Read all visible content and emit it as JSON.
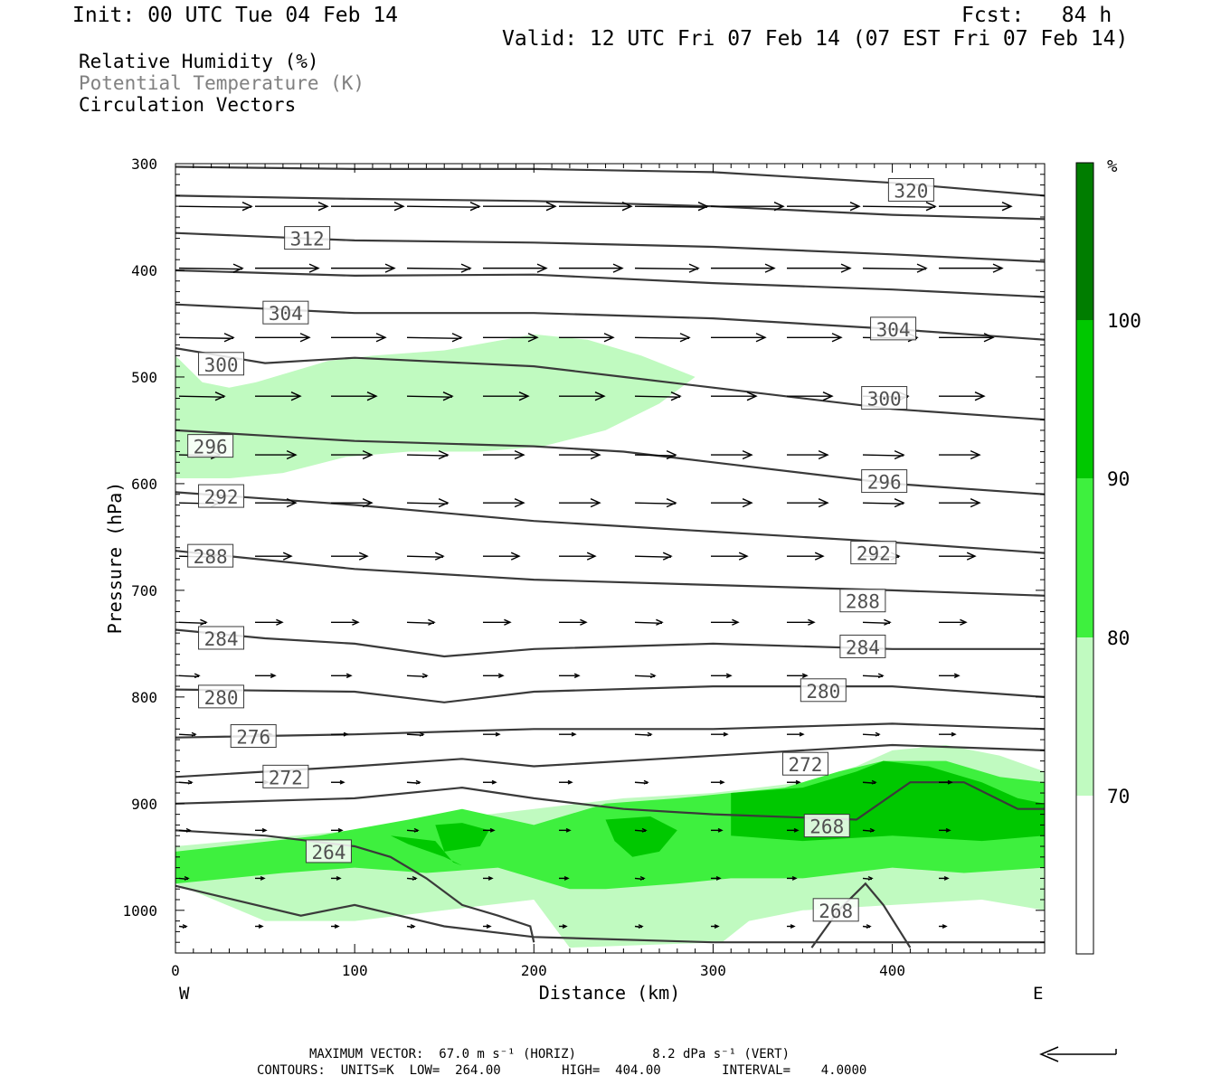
{
  "header": {
    "init": "Init: 00 UTC Tue 04 Feb 14",
    "fcst": "Fcst:   84 h",
    "valid": "Valid: 12 UTC Fri 07 Feb 14 (07 EST Fri 07 Feb 14)",
    "fields": [
      "Relative Humidity (%)",
      "Potential Temperature (K)",
      "Circulation Vectors"
    ]
  },
  "footer": {
    "max_vector": "MAXIMUM VECTOR:  67.0 m s⁻¹ (HORIZ)          8.2 dPa s⁻¹ (VERT)",
    "contours": "CONTOURS:  UNITS=K  LOW=  264.00        HIGH=  404.00        INTERVAL=    4.0000"
  },
  "colors": {
    "rh_70": "#c0fac0",
    "rh_80": "#3ef03e",
    "rh_90": "#00c800",
    "rh_100": "#007d00",
    "contour": "#3a3a3a",
    "text_gray": "#808080"
  },
  "chart_data": {
    "type": "cross-section",
    "xlabel": "Distance (km)",
    "ylabel": "Pressure (hPa)",
    "x_ticks": [
      0,
      100,
      200,
      300,
      400
    ],
    "y_ticks": [
      300,
      400,
      500,
      600,
      700,
      800,
      900,
      1000
    ],
    "xlim": [
      0,
      485
    ],
    "ylim": [
      1040,
      300
    ],
    "y_scale": "linear pressure (decreasing upward)",
    "end_labels": {
      "left": "W",
      "right": "E"
    },
    "colorbar": {
      "unit": "%",
      "levels": [
        70,
        80,
        90,
        100
      ],
      "position": "right"
    },
    "rh_shading": {
      "70": [
        {
          "x": [
            0,
            15,
            30,
            45,
            65,
            85,
            110,
            150,
            200,
            230,
            260,
            290,
            270,
            240,
            205,
            170,
            130,
            95,
            60,
            30,
            0
          ],
          "p": [
            480,
            505,
            510,
            505,
            495,
            485,
            480,
            475,
            460,
            465,
            480,
            500,
            525,
            550,
            565,
            570,
            570,
            575,
            590,
            595,
            595
          ]
        },
        {
          "x": [
            0,
            100,
            150,
            200,
            250,
            300,
            350,
            380,
            400,
            430,
            460,
            485,
            485,
            450,
            400,
            350,
            320,
            305,
            220,
            200,
            150,
            100,
            50,
            0
          ],
          "p": [
            940,
            925,
            915,
            905,
            895,
            890,
            880,
            865,
            850,
            845,
            855,
            870,
            1000,
            990,
            995,
            1000,
            1010,
            1030,
            1035,
            990,
            1000,
            1010,
            1010,
            975
          ]
        }
      ],
      "80": [
        {
          "x": [
            0,
            80,
            130,
            160,
            200,
            240,
            280,
            310,
            340,
            370,
            395,
            430,
            460,
            485,
            485,
            440,
            400,
            350,
            310,
            280,
            240,
            220,
            180,
            140,
            100,
            60,
            0
          ],
          "p": [
            945,
            930,
            915,
            905,
            920,
            900,
            895,
            890,
            885,
            870,
            860,
            860,
            875,
            880,
            960,
            965,
            960,
            970,
            970,
            975,
            980,
            980,
            960,
            965,
            960,
            965,
            975
          ]
        }
      ],
      "90": [
        {
          "x": [
            120,
            145,
            155,
            160,
            150,
            130
          ],
          "p": [
            930,
            935,
            955,
            958,
            950,
            938
          ]
        },
        {
          "x": [
            145,
            160,
            175,
            170,
            150
          ],
          "p": [
            920,
            918,
            925,
            940,
            945
          ]
        },
        {
          "x": [
            240,
            265,
            280,
            270,
            255,
            245
          ],
          "p": [
            915,
            912,
            925,
            945,
            950,
            935
          ]
        },
        {
          "x": [
            310,
            350,
            380,
            395,
            420,
            450,
            470,
            485,
            485,
            450,
            400,
            350,
            310
          ],
          "p": [
            890,
            885,
            870,
            860,
            865,
            880,
            895,
            900,
            930,
            935,
            930,
            935,
            930
          ]
        }
      ]
    },
    "theta_contours": [
      {
        "level": 320,
        "x": [
          0,
          100,
          200,
          300,
          400,
          485
        ],
        "p": [
          303,
          305,
          305,
          308,
          318,
          330
        ]
      },
      {
        "level": 316,
        "x": [
          0,
          100,
          200,
          300,
          400,
          485
        ],
        "p": [
          330,
          333,
          335,
          340,
          348,
          352
        ]
      },
      {
        "level": 312,
        "x": [
          0,
          100,
          200,
          300,
          400,
          485
        ],
        "p": [
          365,
          372,
          374,
          378,
          385,
          392
        ]
      },
      {
        "level": 308,
        "x": [
          0,
          100,
          200,
          300,
          400,
          485
        ],
        "p": [
          400,
          405,
          404,
          412,
          418,
          425
        ]
      },
      {
        "level": 304,
        "x": [
          0,
          100,
          200,
          300,
          400,
          485
        ],
        "p": [
          432,
          440,
          440,
          445,
          455,
          465
        ]
      },
      {
        "level": 300,
        "x": [
          0,
          50,
          100,
          200,
          250,
          300,
          400,
          485
        ],
        "p": [
          473,
          487,
          482,
          490,
          500,
          510,
          530,
          540
        ]
      },
      {
        "level": 296,
        "x": [
          0,
          50,
          100,
          200,
          250,
          300,
          400,
          485
        ],
        "p": [
          550,
          555,
          560,
          565,
          570,
          580,
          600,
          610
        ]
      },
      {
        "level": 292,
        "x": [
          0,
          100,
          200,
          300,
          400,
          485
        ],
        "p": [
          608,
          620,
          635,
          645,
          655,
          665
        ]
      },
      {
        "level": 288,
        "x": [
          0,
          100,
          200,
          300,
          400,
          485
        ],
        "p": [
          663,
          680,
          690,
          695,
          700,
          705
        ]
      },
      {
        "level": 284,
        "x": [
          0,
          50,
          100,
          150,
          200,
          300,
          400,
          485
        ],
        "p": [
          737,
          745,
          750,
          762,
          755,
          750,
          755,
          755
        ]
      },
      {
        "level": 280,
        "x": [
          0,
          100,
          150,
          200,
          300,
          400,
          485
        ],
        "p": [
          793,
          795,
          805,
          795,
          790,
          790,
          800
        ]
      },
      {
        "level": 276,
        "x": [
          0,
          100,
          200,
          300,
          400,
          485
        ],
        "p": [
          838,
          835,
          830,
          830,
          825,
          830
        ]
      },
      {
        "level": 272,
        "x": [
          0,
          100,
          160,
          200,
          300,
          400,
          485
        ],
        "p": [
          875,
          865,
          858,
          865,
          855,
          845,
          850
        ]
      },
      {
        "level": 268,
        "x": [
          0,
          100,
          160,
          200,
          250,
          300,
          350,
          380,
          410,
          440,
          470,
          485
        ],
        "p": [
          900,
          895,
          885,
          895,
          905,
          910,
          913,
          915,
          880,
          880,
          905,
          905
        ]
      },
      {
        "level": 268,
        "x": [
          355,
          370,
          385,
          395,
          410
        ],
        "p": [
          1035,
          1000,
          975,
          995,
          1035
        ]
      },
      {
        "level": 264,
        "x": [
          0,
          50,
          100,
          120,
          140,
          160,
          180,
          198,
          200
        ],
        "p": [
          925,
          930,
          940,
          950,
          970,
          995,
          1005,
          1015,
          1030
        ]
      },
      {
        "level": 264,
        "x": [
          0,
          70,
          100,
          150,
          200,
          300,
          400,
          485
        ],
        "p": [
          977,
          1005,
          995,
          1015,
          1025,
          1030,
          1030,
          1030
        ]
      }
    ],
    "contour_labels": [
      {
        "text": "320",
        "x": 410,
        "p": 325
      },
      {
        "text": "312",
        "x": 73,
        "p": 370
      },
      {
        "text": "304",
        "x": 61,
        "p": 440
      },
      {
        "text": "304",
        "x": 400,
        "p": 455
      },
      {
        "text": "300",
        "x": 25,
        "p": 488
      },
      {
        "text": "300",
        "x": 395,
        "p": 520
      },
      {
        "text": "296",
        "x": 19,
        "p": 565
      },
      {
        "text": "296",
        "x": 395,
        "p": 598
      },
      {
        "text": "292",
        "x": 25,
        "p": 612
      },
      {
        "text": "292",
        "x": 389,
        "p": 665
      },
      {
        "text": "288",
        "x": 19,
        "p": 668
      },
      {
        "text": "288",
        "x": 383,
        "p": 710
      },
      {
        "text": "284",
        "x": 25,
        "p": 745
      },
      {
        "text": "284",
        "x": 383,
        "p": 753
      },
      {
        "text": "280",
        "x": 25,
        "p": 800
      },
      {
        "text": "280",
        "x": 361,
        "p": 794
      },
      {
        "text": "276",
        "x": 43,
        "p": 837
      },
      {
        "text": "272",
        "x": 61,
        "p": 875
      },
      {
        "text": "272",
        "x": 351,
        "p": 863
      },
      {
        "text": "268",
        "x": 363,
        "p": 921
      },
      {
        "text": "268",
        "x": 368,
        "p": 1000
      },
      {
        "text": "264",
        "x": 85,
        "p": 945
      }
    ],
    "vector_rows": [
      {
        "p": 340,
        "len": 80,
        "x0": 0,
        "n": 11
      },
      {
        "p": 398,
        "len": 70,
        "x0": 0,
        "n": 11
      },
      {
        "p": 463,
        "len": 60,
        "x0": 0,
        "n": 11
      },
      {
        "p": 518,
        "len": 50,
        "x0": 0,
        "n": 11
      },
      {
        "p": 573,
        "len": 45,
        "x0": 0,
        "n": 11
      },
      {
        "p": 618,
        "len": 45,
        "x0": 0,
        "n": 11
      },
      {
        "p": 668,
        "len": 40,
        "x0": 0,
        "n": 11
      },
      {
        "p": 730,
        "len": 30,
        "x0": 0,
        "n": 11
      },
      {
        "p": 780,
        "len": 22,
        "x0": 0,
        "n": 11
      },
      {
        "p": 835,
        "len": 18,
        "x0": 0,
        "n": 11
      },
      {
        "p": 880,
        "len": 14,
        "x0": 0,
        "n": 11
      },
      {
        "p": 925,
        "len": 12,
        "x0": 0,
        "n": 11
      },
      {
        "p": 970,
        "len": 10,
        "x0": 0,
        "n": 11
      },
      {
        "p": 1015,
        "len": 8,
        "x0": 0,
        "n": 11
      }
    ]
  }
}
